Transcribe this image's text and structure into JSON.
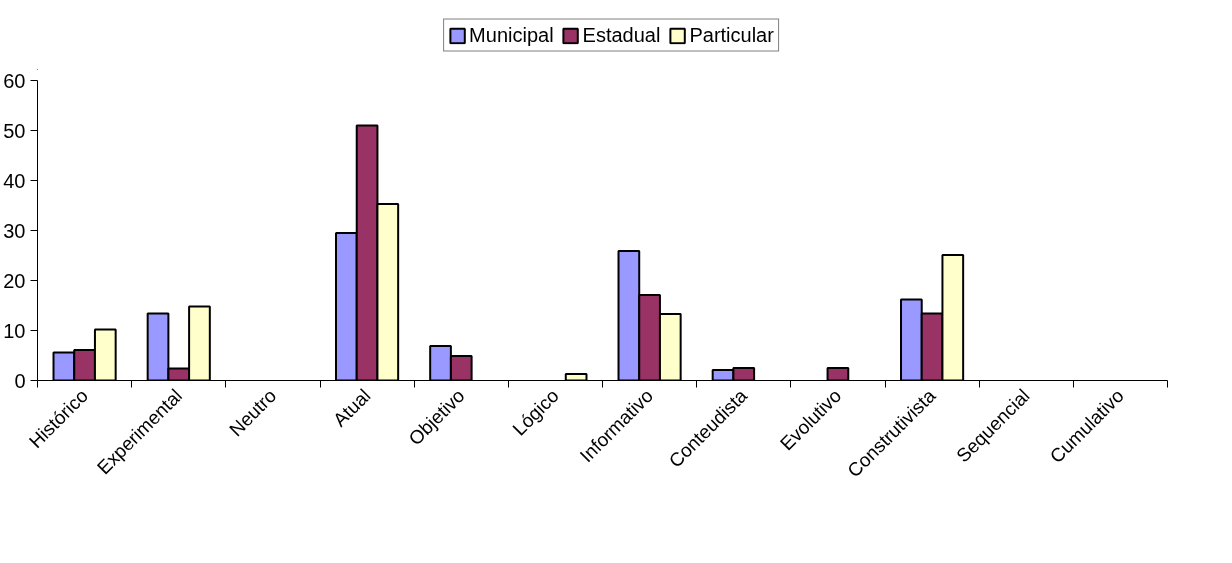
{
  "chart_data": {
    "type": "bar",
    "categories": [
      "Histórico",
      "Experimental",
      "Neutro",
      "Atual",
      "Objetivo",
      "Lógico",
      "Informativo",
      "Conteudista",
      "Evolutivo",
      "Construtivista",
      "Sequencial",
      "Cumulativo"
    ],
    "series": [
      {
        "name": "Municipal",
        "color": "#9999ff",
        "values": [
          5.6,
          13.4,
          null,
          29.5,
          6.9,
          null,
          25.9,
          2.1,
          null,
          16.2,
          null,
          null
        ]
      },
      {
        "name": "Estadual",
        "color": "#993366",
        "values": [
          6.1,
          2.4,
          null,
          51.0,
          4.9,
          null,
          17.1,
          2.5,
          2.5,
          13.4,
          null,
          null
        ]
      },
      {
        "name": "Particular",
        "color": "#ffffcc",
        "values": [
          10.2,
          14.8,
          null,
          35.3,
          null,
          1.3,
          13.3,
          null,
          null,
          25.1,
          null,
          null
        ]
      }
    ],
    "ylim": [
      0,
      60
    ],
    "yticks": [
      0,
      10,
      20,
      30,
      40,
      50,
      60
    ],
    "grid": false,
    "legend": "top"
  }
}
